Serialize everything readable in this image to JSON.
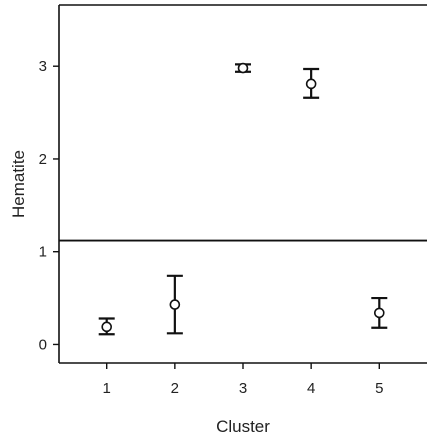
{
  "chart_data": {
    "type": "scatter",
    "xlabel": "Cluster",
    "ylabel": "Hematite",
    "x_ticks": [
      "1",
      "2",
      "3",
      "4",
      "5"
    ],
    "y_ticks": [
      "0",
      "1",
      "2",
      "3"
    ],
    "xlim": [
      0.3,
      5.7
    ],
    "ylim": [
      -0.2,
      3.66
    ],
    "reference_line_y": 1.12,
    "grid": false,
    "points": [
      {
        "x": 1,
        "mean": 0.19,
        "lower": 0.11,
        "upper": 0.28
      },
      {
        "x": 2,
        "mean": 0.43,
        "lower": 0.12,
        "upper": 0.74
      },
      {
        "x": 3,
        "mean": 2.98,
        "lower": 2.94,
        "upper": 3.02
      },
      {
        "x": 4,
        "mean": 2.81,
        "lower": 2.66,
        "upper": 2.97
      },
      {
        "x": 5,
        "mean": 0.34,
        "lower": 0.18,
        "upper": 0.5
      }
    ],
    "colors": {
      "ink": "#111111",
      "background": "#ffffff"
    }
  }
}
